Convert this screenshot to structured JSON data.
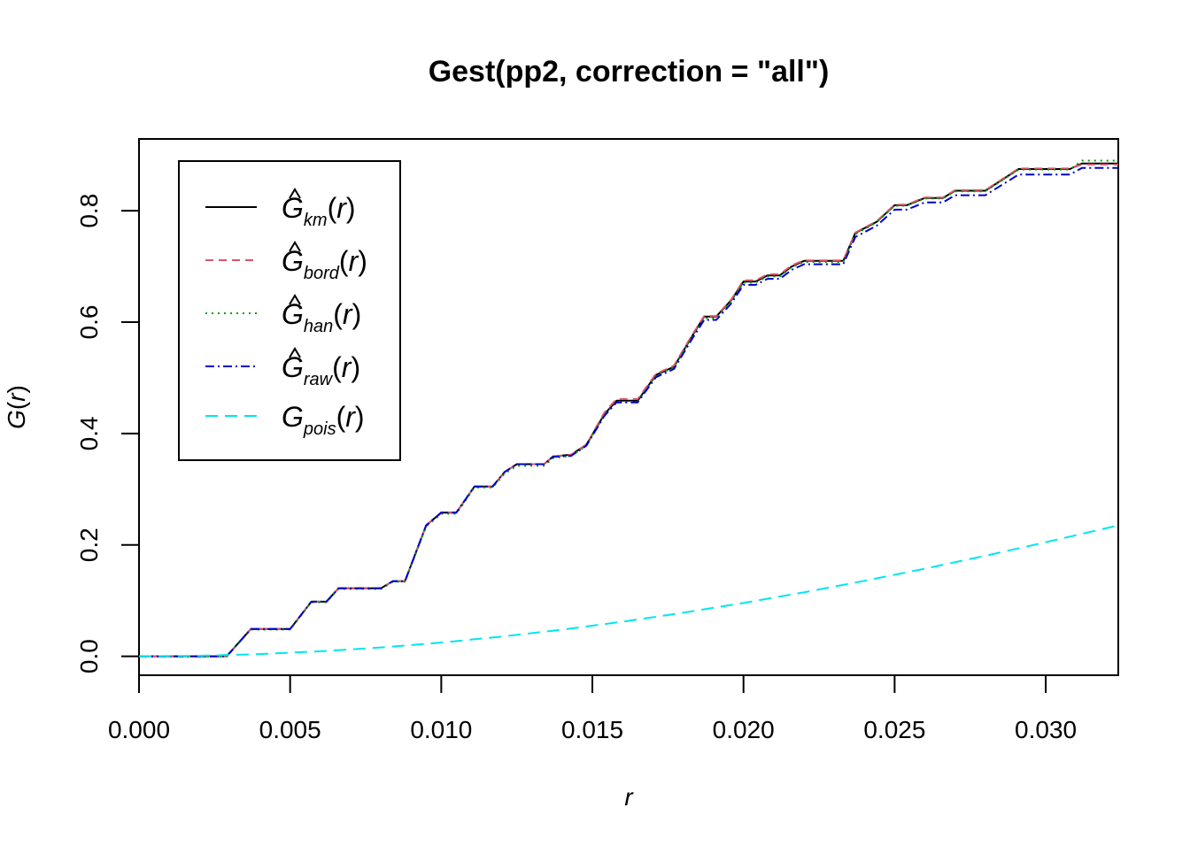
{
  "chart_data": {
    "type": "line",
    "title": "Gest(pp2, correction = \"all\")",
    "xlabel": "r",
    "ylabel_main": "G",
    "ylabel_arg": "r",
    "xlim": [
      0,
      0.0324
    ],
    "ylim": [
      -0.034,
      0.929
    ],
    "xticks": [
      0,
      0.005,
      0.01,
      0.015,
      0.02,
      0.025,
      0.03
    ],
    "xtick_labels": [
      "0.000",
      "0.005",
      "0.010",
      "0.015",
      "0.020",
      "0.025",
      "0.030"
    ],
    "yticks": [
      0,
      0.2,
      0.4,
      0.6,
      0.8
    ],
    "ytick_labels": [
      "0.0",
      "0.2",
      "0.4",
      "0.6",
      "0.8"
    ],
    "legend_position": "top-left",
    "series": [
      {
        "name": "km",
        "label_main": "G",
        "label_sub": "km",
        "label_arg": "r",
        "hat": true,
        "color": "#000000",
        "dash": "",
        "x": [
          0,
          0.0029,
          0.0037,
          0.005,
          0.0057,
          0.0062,
          0.0066,
          0.008,
          0.0084,
          0.0088,
          0.0095,
          0.01,
          0.0105,
          0.0111,
          0.0117,
          0.0121,
          0.0125,
          0.0134,
          0.0137,
          0.0143,
          0.0148,
          0.0154,
          0.0158,
          0.0165,
          0.0171,
          0.0177,
          0.0183,
          0.0187,
          0.0191,
          0.0196,
          0.02,
          0.0204,
          0.0208,
          0.0212,
          0.0216,
          0.022,
          0.0224,
          0.0233,
          0.0237,
          0.0244,
          0.025,
          0.0254,
          0.026,
          0.0266,
          0.027,
          0.028,
          0.0291,
          0.03,
          0.0308,
          0.0312,
          0.0324
        ],
        "y": [
          0,
          0,
          0.049,
          0.049,
          0.098,
          0.098,
          0.122,
          0.122,
          0.135,
          0.135,
          0.235,
          0.258,
          0.258,
          0.305,
          0.305,
          0.331,
          0.345,
          0.345,
          0.359,
          0.362,
          0.38,
          0.435,
          0.459,
          0.459,
          0.505,
          0.52,
          0.575,
          0.61,
          0.61,
          0.64,
          0.673,
          0.673,
          0.684,
          0.684,
          0.7,
          0.71,
          0.71,
          0.71,
          0.76,
          0.78,
          0.81,
          0.81,
          0.823,
          0.823,
          0.836,
          0.836,
          0.875,
          0.875,
          0.875,
          0.885,
          0.885
        ]
      },
      {
        "name": "bord",
        "label_main": "G",
        "label_sub": "bord",
        "label_arg": "r",
        "hat": true,
        "color": "#df536b",
        "dash": "9,6",
        "x": [
          0,
          0.0029,
          0.0037,
          0.005,
          0.0057,
          0.0062,
          0.0066,
          0.008,
          0.0084,
          0.0088,
          0.0095,
          0.01,
          0.0105,
          0.0111,
          0.0117,
          0.0121,
          0.0125,
          0.0134,
          0.0137,
          0.0143,
          0.0148,
          0.0154,
          0.0158,
          0.0165,
          0.0171,
          0.0177,
          0.0183,
          0.0187,
          0.0191,
          0.0196,
          0.02,
          0.0204,
          0.0208,
          0.0212,
          0.0216,
          0.022,
          0.0224,
          0.0233,
          0.0237,
          0.0244,
          0.025,
          0.0254,
          0.026,
          0.0266,
          0.027,
          0.028,
          0.0291,
          0.03,
          0.0308,
          0.0312,
          0.0324
        ],
        "y": [
          0,
          0,
          0.049,
          0.049,
          0.098,
          0.098,
          0.122,
          0.122,
          0.135,
          0.135,
          0.235,
          0.258,
          0.258,
          0.305,
          0.305,
          0.331,
          0.345,
          0.345,
          0.359,
          0.362,
          0.38,
          0.438,
          0.462,
          0.462,
          0.507,
          0.522,
          0.577,
          0.611,
          0.611,
          0.641,
          0.675,
          0.675,
          0.686,
          0.686,
          0.702,
          0.711,
          0.711,
          0.711,
          0.761,
          0.781,
          0.811,
          0.811,
          0.824,
          0.824,
          0.837,
          0.837,
          0.876,
          0.876,
          0.876,
          0.883,
          0.883
        ]
      },
      {
        "name": "han",
        "label_main": "G",
        "label_sub": "han",
        "label_arg": "r",
        "hat": true,
        "color": "#009e00",
        "dash": "2,5",
        "x": [
          0,
          0.0029,
          0.0037,
          0.005,
          0.0057,
          0.0062,
          0.0066,
          0.008,
          0.0084,
          0.0088,
          0.0095,
          0.01,
          0.0105,
          0.0111,
          0.0117,
          0.0121,
          0.0125,
          0.0134,
          0.0137,
          0.0143,
          0.0148,
          0.0154,
          0.0158,
          0.0165,
          0.0171,
          0.0177,
          0.0183,
          0.0187,
          0.0191,
          0.0196,
          0.02,
          0.0204,
          0.0208,
          0.0212,
          0.0216,
          0.022,
          0.0224,
          0.0233,
          0.0237,
          0.0244,
          0.025,
          0.0254,
          0.026,
          0.0266,
          0.027,
          0.028,
          0.0291,
          0.03,
          0.0308,
          0.0312,
          0.0324
        ],
        "y": [
          0,
          0,
          0.048,
          0.048,
          0.097,
          0.097,
          0.121,
          0.121,
          0.134,
          0.134,
          0.233,
          0.256,
          0.256,
          0.303,
          0.303,
          0.328,
          0.342,
          0.342,
          0.356,
          0.36,
          0.378,
          0.434,
          0.457,
          0.457,
          0.504,
          0.519,
          0.574,
          0.607,
          0.607,
          0.638,
          0.671,
          0.671,
          0.682,
          0.682,
          0.699,
          0.708,
          0.708,
          0.708,
          0.758,
          0.779,
          0.809,
          0.809,
          0.822,
          0.822,
          0.835,
          0.835,
          0.874,
          0.874,
          0.874,
          0.89,
          0.89
        ]
      },
      {
        "name": "raw",
        "label_main": "G",
        "label_sub": "raw",
        "label_arg": "r",
        "hat": true,
        "color": "#0000cd",
        "dash": "10,4,2,4",
        "x": [
          0,
          0.0029,
          0.0037,
          0.005,
          0.0057,
          0.0062,
          0.0066,
          0.008,
          0.0084,
          0.0088,
          0.0095,
          0.01,
          0.0105,
          0.0111,
          0.0117,
          0.0121,
          0.0125,
          0.0134,
          0.0137,
          0.0143,
          0.0148,
          0.0154,
          0.0158,
          0.0165,
          0.0171,
          0.0177,
          0.0183,
          0.0187,
          0.0191,
          0.0196,
          0.02,
          0.0204,
          0.0208,
          0.0212,
          0.0216,
          0.022,
          0.0224,
          0.0233,
          0.0237,
          0.0244,
          0.025,
          0.0254,
          0.026,
          0.0266,
          0.027,
          0.028,
          0.0291,
          0.03,
          0.0308,
          0.0312,
          0.0324
        ],
        "y": [
          0,
          0,
          0.049,
          0.049,
          0.098,
          0.098,
          0.122,
          0.122,
          0.135,
          0.135,
          0.235,
          0.258,
          0.258,
          0.305,
          0.305,
          0.331,
          0.345,
          0.345,
          0.358,
          0.36,
          0.378,
          0.432,
          0.456,
          0.456,
          0.501,
          0.516,
          0.57,
          0.604,
          0.604,
          0.634,
          0.667,
          0.667,
          0.678,
          0.678,
          0.694,
          0.704,
          0.704,
          0.704,
          0.753,
          0.773,
          0.802,
          0.802,
          0.815,
          0.815,
          0.828,
          0.828,
          0.865,
          0.865,
          0.865,
          0.877,
          0.877
        ]
      },
      {
        "name": "pois",
        "label_main": "G",
        "label_sub": "pois",
        "label_arg": "r",
        "hat": false,
        "color": "#00e5ee",
        "dash": "14,8",
        "x": [
          0,
          0.002,
          0.004,
          0.006,
          0.008,
          0.01,
          0.012,
          0.014,
          0.016,
          0.018,
          0.02,
          0.022,
          0.024,
          0.026,
          0.028,
          0.03,
          0.0324
        ],
        "y": [
          0,
          0.001,
          0.004,
          0.009,
          0.0159,
          0.0247,
          0.0354,
          0.0479,
          0.0622,
          0.0782,
          0.0958,
          0.1149,
          0.1355,
          0.1574,
          0.1806,
          0.2048,
          0.235
        ]
      }
    ]
  }
}
